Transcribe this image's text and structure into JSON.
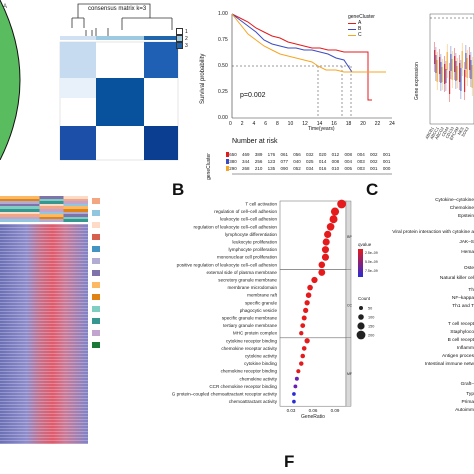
{
  "panels": {
    "b_letter": "B",
    "c_letter": "C",
    "f_letter": "F",
    "a_label": "A"
  },
  "consensus": {
    "title": "consensus matrix k=3",
    "legend": [
      "1",
      "2",
      "3"
    ],
    "legend_colors": [
      "#ffffff",
      "#9ecae1",
      "#2166ac"
    ]
  },
  "survival": {
    "legend_title": "geneCluster",
    "legend_items": [
      "A",
      "B",
      "C"
    ],
    "legend_colors": [
      "#e41a1c",
      "#3b4cc0",
      "#f5a623"
    ],
    "ylabel": "Survival probability",
    "xlabel": "Time(years)",
    "pvalue": "p=0.002",
    "y_ticks": [
      "0.00",
      "0.25",
      "0.50",
      "0.75",
      "1.00"
    ],
    "x_ticks": [
      "0",
      "2",
      "4",
      "6",
      "8",
      "10",
      "12",
      "14",
      "16",
      "18",
      "20",
      "22",
      "24"
    ],
    "risk_title": "Number at risk",
    "risk_ylabel": "geneCluster",
    "risk_rows": [
      [
        "650",
        "469",
        "389",
        "176",
        "061",
        "056",
        "032",
        "020",
        "012",
        "008",
        "004",
        "002",
        "001"
      ],
      [
        "380",
        "344",
        "256",
        "123",
        "077",
        "040",
        "025",
        "014",
        "008",
        "004",
        "003",
        "002",
        "001"
      ],
      [
        "290",
        "268",
        "210",
        "135",
        "090",
        "052",
        "034",
        "016",
        "010",
        "005",
        "003",
        "001",
        "000"
      ]
    ]
  },
  "boxplot": {
    "ylabel": "Gene expression",
    "genes": [
      "ABCB1",
      "ABCC1",
      "ABCG2",
      "CD44",
      "CD133",
      "EPCAM",
      "NES",
      "SOX2"
    ]
  },
  "go": {
    "sections": [
      "BP",
      "CC",
      "MF"
    ],
    "xlabel": "GeneRatio",
    "x_ticks": [
      "0.03",
      "0.06",
      "0.09"
    ],
    "terms": [
      "T cell activation",
      "regulation of cell–cell adhesion",
      "leukocyte cell–cell adhesion",
      "regulation of leukocyte cell–cell adhesion",
      "lymphocyte differentiation",
      "leukocyte proliferation",
      "lymphocyte proliferation",
      "mononuclear cell proliferation",
      "positive regulation of leukocyte cell–cell adhesion",
      "external side of plasma membrane",
      "secretory granule membrane",
      "membrane microdomain",
      "membrane raft",
      "specific granule",
      "phagocytic vesicle",
      "specific granule membrane",
      "tertiary granule membrane",
      "MHC protein complex",
      "cytokine receptor binding",
      "chemokine receptor activity",
      "cytokine activity",
      "cytokine binding",
      "chemokine receptor binding",
      "chemokine activity",
      "CCR chemokine receptor binding",
      "G protein–coupled chemoattractant receptor activity",
      "chemoattractant activity"
    ],
    "qvalue_title": "qvalue",
    "qvalue_ticks": [
      "2.5e–09",
      "5.0e–09",
      "7.5e–09"
    ],
    "count_title": "Count",
    "count_ticks": [
      "50",
      "100",
      "150",
      "200"
    ]
  },
  "kegg": {
    "terms": [
      "Cytokine–cytokine",
      "Chemokine",
      "Epstein",
      "Viral protein interaction with cytokine a",
      "JAK–S",
      "Hema",
      "Oste",
      "Natural killer cel",
      "Th",
      "NF–kappa",
      "Th1 and T",
      "T cell recept",
      "Staphyloco",
      "B cell recept",
      "Inflamm",
      "Antigen proces",
      "Intestinal immune netw",
      "Graft–",
      "Typ",
      "Prima",
      "Autoimm"
    ]
  },
  "heatmap": {
    "annotation_rows": 10,
    "legend_colors": [
      "#f4a582",
      "#92c5de",
      "#fddbc7",
      "#d6604d",
      "#4393c3",
      "#b2abd2",
      "#8073ac",
      "#fdb863",
      "#e08214",
      "#80cdc1",
      "#35978f",
      "#c2a5cf",
      "#1b7837"
    ]
  }
}
